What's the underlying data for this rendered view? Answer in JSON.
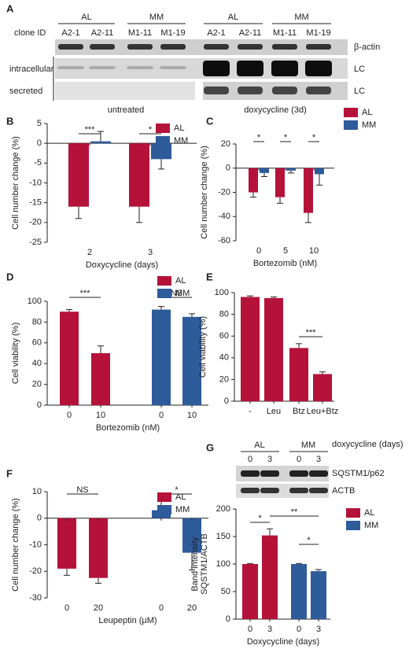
{
  "blot_a": {
    "label": "A",
    "groups": [
      "AL",
      "MM",
      "AL",
      "MM"
    ],
    "clone_label": "clone ID",
    "clones": [
      "A2-1",
      "A2-11",
      "M1-11",
      "M1-19",
      "A2-1",
      "A2-11",
      "M1-11",
      "M1-19"
    ],
    "rows": [
      "intracellular",
      "secreted"
    ],
    "bands": [
      "β-actin",
      "LC",
      "LC"
    ],
    "conditions": [
      "untreated",
      "doxycycline (3d)"
    ]
  },
  "blot_g": {
    "groups": [
      "AL",
      "MM"
    ],
    "lanes": [
      "0",
      "3",
      "0",
      "3"
    ],
    "lanes_label": "doxycycline (days)",
    "bands": [
      "SQSTM1/p62",
      "ACTB"
    ]
  },
  "chart_data": [
    {
      "type": "bar",
      "label": "B",
      "ylabel": [
        "Cell number change (%)"
      ],
      "xlabel": "Doxycycline (days)",
      "categories": [
        "2",
        "3"
      ],
      "series": [
        {
          "name": "AL",
          "color": "#b5123a",
          "values": [
            -16,
            -16
          ],
          "errors": [
            3,
            4
          ]
        },
        {
          "name": "MM",
          "color": "#2e5b9a",
          "values": [
            0.5,
            -4
          ],
          "errors": [
            2.5,
            2.5
          ]
        }
      ],
      "ylim": [
        -25,
        5
      ],
      "yticks": [
        -25,
        -20,
        -15,
        -10,
        -5,
        0,
        5
      ],
      "annotations": [
        "***",
        "*"
      ]
    },
    {
      "type": "bar",
      "label": "C",
      "ylabel": [
        "Cell number change (%)"
      ],
      "xlabel": "Bortezomib (nM)",
      "categories": [
        "0",
        "5",
        "10"
      ],
      "series": [
        {
          "name": "AL",
          "color": "#b5123a",
          "values": [
            -20,
            -24,
            -37
          ],
          "errors": [
            4,
            5,
            8
          ]
        },
        {
          "name": "MM",
          "color": "#2e5b9a",
          "values": [
            -4,
            -2,
            -5
          ],
          "errors": [
            3,
            2,
            9
          ]
        }
      ],
      "ylim": [
        -60,
        20
      ],
      "yticks": [
        -60,
        -40,
        -20,
        0,
        20
      ],
      "annotations": [
        "*",
        "*",
        "*"
      ]
    },
    {
      "type": "bar",
      "label": "D",
      "ylabel": [
        "Cell viability (%)"
      ],
      "xlabel": "Bortezomib (nM)",
      "categories": [
        "0",
        "10",
        "0",
        "10"
      ],
      "series": [
        {
          "name": "AL",
          "color": "#b5123a",
          "values": [
            90,
            50,
            null,
            null
          ],
          "errors": [
            2,
            7,
            null,
            null
          ]
        },
        {
          "name": "MM",
          "color": "#2e5b9a",
          "values": [
            null,
            null,
            92,
            85
          ],
          "errors": [
            null,
            null,
            3,
            3
          ]
        }
      ],
      "ylim": [
        0,
        100
      ],
      "yticks": [
        0,
        20,
        40,
        60,
        80,
        100
      ],
      "annotations": [
        "***",
        "NS"
      ]
    },
    {
      "type": "bar",
      "label": "E",
      "ylabel": [
        "Cell viability (%)"
      ],
      "categories": [
        "-",
        "Leu",
        "Btz",
        "Leu+Btz"
      ],
      "series": [
        {
          "color": "#b5123a",
          "values": [
            96,
            95,
            49,
            25
          ],
          "errors": [
            1,
            1,
            4,
            2
          ]
        }
      ],
      "ylim": [
        0,
        100
      ],
      "yticks": [
        0,
        20,
        40,
        60,
        80,
        100
      ],
      "annotations": [
        "***"
      ]
    },
    {
      "type": "bar",
      "label": "F",
      "ylabel": [
        "Cell number change (%)"
      ],
      "xlabel": "Leupeptin (μM)",
      "categories": [
        "0",
        "20",
        "0",
        "20"
      ],
      "series": [
        {
          "name": "AL",
          "color": "#b5123a",
          "values": [
            -19,
            -22.5,
            null,
            null
          ],
          "errors": [
            2.5,
            2,
            null,
            null
          ]
        },
        {
          "name": "MM",
          "color": "#2e5b9a",
          "values": [
            null,
            null,
            3,
            -13
          ],
          "errors": [
            null,
            null,
            4,
            6.5
          ]
        }
      ],
      "ylim": [
        -30,
        10
      ],
      "yticks": [
        -30,
        -20,
        -10,
        0,
        10
      ],
      "annotations": [
        "NS",
        "*"
      ]
    },
    {
      "type": "bar",
      "label": "G",
      "ylabel": [
        "Band intensity",
        "SQSTM1/ACTB"
      ],
      "xlabel": "Doxycycline (days)",
      "categories": [
        "0",
        "3",
        "0",
        "3"
      ],
      "series": [
        {
          "name": "AL",
          "color": "#b5123a",
          "values": [
            100,
            152,
            null,
            null
          ],
          "errors": [
            1,
            12,
            null,
            null
          ]
        },
        {
          "name": "MM",
          "color": "#2e5b9a",
          "values": [
            null,
            null,
            100,
            87
          ],
          "errors": [
            null,
            null,
            1,
            3
          ]
        }
      ],
      "ylim": [
        0,
        200
      ],
      "yticks": [
        0,
        50,
        100,
        150,
        200
      ],
      "annotations": [
        "*",
        "**",
        "*"
      ]
    }
  ]
}
